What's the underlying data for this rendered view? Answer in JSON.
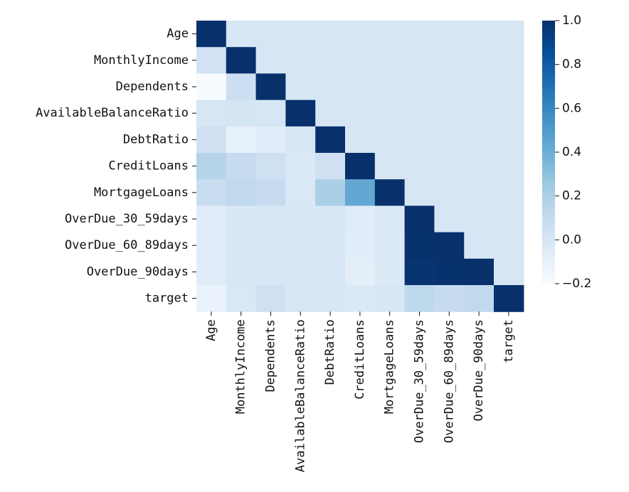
{
  "chart_data": {
    "type": "heatmap",
    "title": "",
    "xlabel": "",
    "ylabel": "",
    "labels": [
      "Age",
      "MonthlyIncome",
      "Dependents",
      "AvailableBalanceRatio",
      "DebtRatio",
      "CreditLoans",
      "MortgageLoans",
      "OverDue_30_59days",
      "OverDue_60_89days",
      "OverDue_90days",
      "target"
    ],
    "matrix": [
      [
        1.0,
        0.0,
        0.0,
        0.0,
        0.0,
        0.0,
        0.0,
        0.0,
        0.0,
        0.0,
        0.0
      ],
      [
        0.03,
        1.0,
        0.0,
        0.0,
        0.0,
        0.0,
        0.0,
        0.0,
        0.0,
        0.0,
        0.0
      ],
      [
        -0.22,
        0.06,
        1.0,
        0.0,
        0.0,
        0.0,
        0.0,
        0.0,
        0.0,
        0.0,
        0.0
      ],
      [
        0.0,
        0.01,
        0.0,
        1.0,
        0.0,
        0.0,
        0.0,
        0.0,
        0.0,
        0.0,
        0.0
      ],
      [
        0.04,
        -0.1,
        -0.07,
        0.0,
        1.0,
        0.0,
        0.0,
        0.0,
        0.0,
        0.0,
        0.0
      ],
      [
        0.16,
        0.1,
        0.05,
        -0.03,
        0.05,
        1.0,
        0.0,
        0.0,
        0.0,
        0.0,
        0.0
      ],
      [
        0.08,
        0.12,
        0.1,
        -0.02,
        0.2,
        0.43,
        1.0,
        0.0,
        0.0,
        0.0,
        0.0
      ],
      [
        -0.06,
        -0.01,
        -0.01,
        -0.01,
        -0.01,
        -0.06,
        -0.03,
        1.0,
        0.0,
        0.0,
        0.0
      ],
      [
        -0.06,
        -0.01,
        -0.01,
        -0.01,
        -0.01,
        -0.07,
        -0.03,
        0.99,
        1.0,
        0.0,
        0.0
      ],
      [
        -0.06,
        -0.01,
        -0.01,
        -0.01,
        -0.01,
        -0.08,
        -0.04,
        0.98,
        0.99,
        1.0,
        0.0
      ],
      [
        -0.12,
        -0.02,
        0.05,
        -0.0,
        -0.01,
        -0.03,
        -0.01,
        0.13,
        0.1,
        0.12,
        1.0
      ]
    ],
    "colorbar": {
      "min": -0.2,
      "max": 1.0,
      "ticks": [
        "1.0",
        "0.8",
        "0.6",
        "0.4",
        "0.2",
        "0.0",
        "−0.2"
      ],
      "tick_values": [
        1.0,
        0.8,
        0.6,
        0.4,
        0.2,
        0.0,
        -0.2
      ]
    },
    "colormap": "Blues",
    "colors": {
      "low": "#f7fbff",
      "high": "#08306b"
    }
  }
}
